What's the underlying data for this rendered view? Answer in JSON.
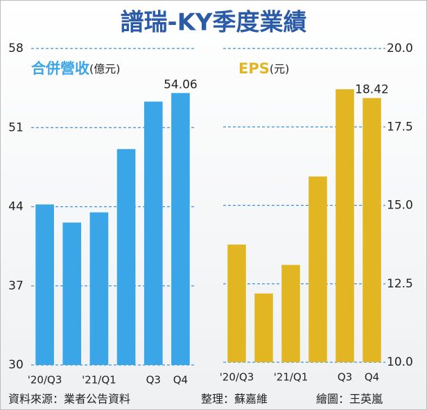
{
  "title": "譜瑞-KY季度業績",
  "source": "資料來源：業者公告資料",
  "compiled_by": "整理：蘇嘉維",
  "illustrated_by": "繪圖：王英嵐",
  "chart_data": [
    {
      "type": "bar",
      "y_label": "合併營收",
      "unit": "(億元)",
      "categories": [
        "'20/Q3",
        null,
        "'21/Q1",
        null,
        "Q3",
        "Q4"
      ],
      "values": [
        44.2,
        42.6,
        43.5,
        49.1,
        53.3,
        54.06
      ],
      "value_labels": [
        null,
        null,
        null,
        null,
        null,
        "54.06"
      ],
      "color": "#3aa6e8",
      "label_color": "#3aa6e8",
      "ylim": [
        30,
        58
      ],
      "yticks": [
        30,
        37,
        44,
        51,
        58
      ],
      "grid": true,
      "axis_side": "left"
    },
    {
      "type": "bar",
      "y_label": "EPS",
      "unit": "(元)",
      "categories": [
        "'20/Q3",
        null,
        "'21/Q1",
        null,
        "Q3",
        "Q4"
      ],
      "values": [
        13.75,
        12.19,
        13.1,
        15.92,
        18.7,
        18.42
      ],
      "value_labels": [
        null,
        null,
        null,
        null,
        null,
        "18.42"
      ],
      "color": "#e2b623",
      "label_color": "#e2b623",
      "ylim": [
        10,
        20
      ],
      "yticks": [
        {
          "value": 10,
          "label": "10.0"
        },
        {
          "value": 12.5,
          "label": "12.5"
        },
        {
          "value": 15,
          "label": "15.0"
        },
        {
          "value": 17.5,
          "label": "17.5"
        },
        {
          "value": 20,
          "label": "20.0"
        }
      ],
      "grid": true,
      "axis_side": "right"
    }
  ]
}
